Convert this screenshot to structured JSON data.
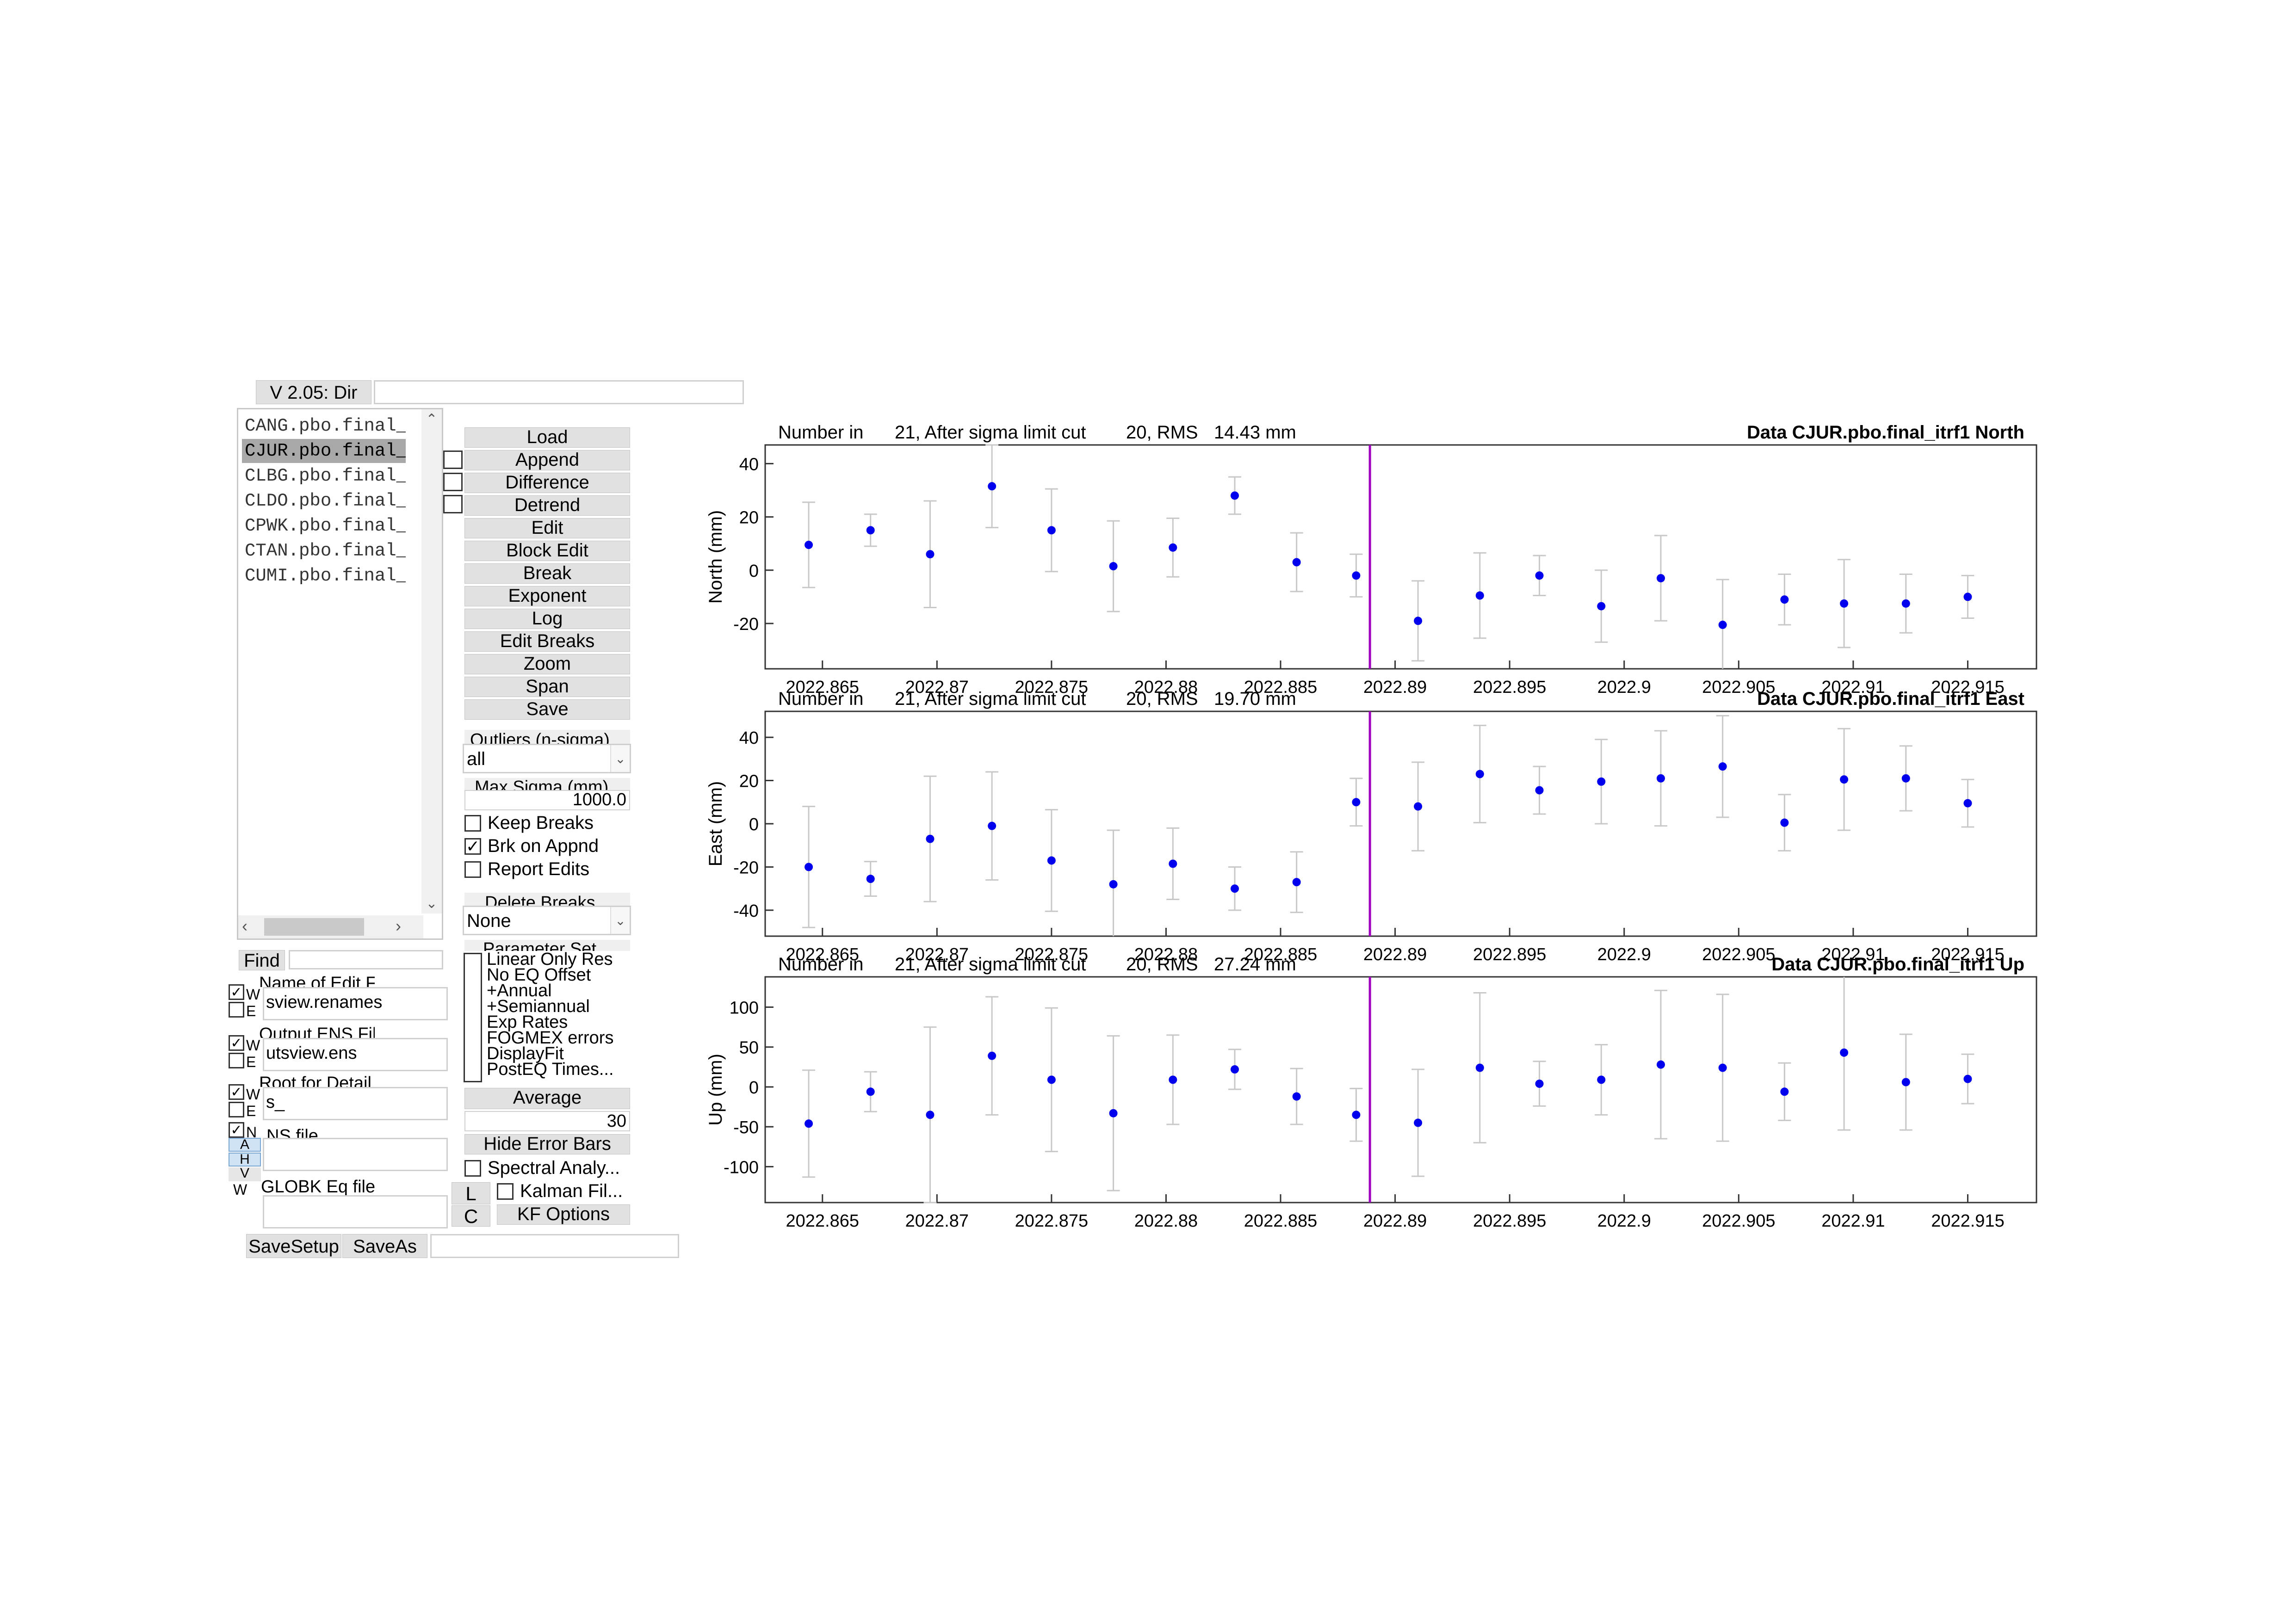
{
  "window": {
    "version_label": "V 2.05: Dir",
    "dir_value": ""
  },
  "file_list": {
    "items": [
      "CANG.pbo.final_",
      "CJUR.pbo.final_",
      "CLBG.pbo.final_",
      "CLDO.pbo.final_",
      "CPWK.pbo.final_",
      "CTAN.pbo.final_",
      "CUMI.pbo.final_"
    ],
    "selected_index": 1
  },
  "actions": {
    "buttons": [
      "Load",
      "Append",
      "Difference",
      "Detrend",
      "Edit",
      "Block Edit",
      "Break",
      "Exponent",
      "Log",
      "Edit Breaks",
      "Zoom",
      "Span",
      "Save"
    ]
  },
  "outliers": {
    "label": "Outliers (n-sigma)",
    "value": "all",
    "max_sigma_label": "Max Sigma (mm)",
    "max_sigma_value": "1000.0"
  },
  "options": {
    "keep_breaks": "Keep Breaks",
    "brk_on_appnd": "Brk on Appnd",
    "report_edits": "Report Edits"
  },
  "delete_breaks": {
    "label": "Delete Breaks",
    "value": "None"
  },
  "parameter_set": {
    "label": "Parameter Set",
    "items": [
      "Linear Only Res",
      "No EQ Offset",
      "+Annual",
      "+Semiannual",
      "Exp Rates",
      "FOGMEX errors",
      "DisplayFit",
      "PostEQ Times..."
    ]
  },
  "average": {
    "button": "Average",
    "value": "30"
  },
  "bottom_buttons": {
    "hide_error_bars": "Hide Error Bars",
    "spectral": "Spectral Analy...",
    "kalman": "Kalman Fil...",
    "kf_options": "KF Options",
    "l": "L",
    "c": "C"
  },
  "find": {
    "label": "Find",
    "value": ""
  },
  "files": {
    "edit_label": "Name of Edit File",
    "edit_value": "sview.renames",
    "ens_label": "Output ENS File",
    "ens_value": "utsview.ens",
    "root_label": "Root for Detail",
    "root_value": "s_",
    "ns_label": "NS file",
    "ns_value": "",
    "globk_label": "GLOBK Eq file",
    "globk_value": "",
    "side_w": "W",
    "side_e": "E",
    "side_n": "N",
    "side_a": "A",
    "side_h": "H",
    "side_v": "V"
  },
  "setup": {
    "save_setup": "SaveSetup",
    "save_as": "SaveAs",
    "value": ""
  },
  "colors": {
    "point": "#0000ee",
    "errorbar": "#c8c8c8",
    "break_line": "#a000c0"
  },
  "chart_data": [
    {
      "type": "scatter",
      "title": "Data CJUR.pbo.final_itrf1 North",
      "stats_left": "Number in",
      "stats_n": "21, After sigma limit cut",
      "stats_cut": "20, RMS",
      "stats_rms": "14.43 mm",
      "ylabel": "North (mm)",
      "xlim": [
        2022.8625,
        2022.918
      ],
      "ylim": [
        -37,
        47
      ],
      "yticks": [
        40,
        20,
        0,
        -20
      ],
      "xticks": [
        "2022.865",
        "2022.87",
        "2022.875",
        "2022.88",
        "2022.885",
        "2022.89",
        "2022.895",
        "2022.9",
        "2022.905",
        "2022.91",
        "2022.915"
      ],
      "break_x": 2022.8889,
      "points": [
        {
          "x": 2022.8644,
          "y": 9.5,
          "err": 16
        },
        {
          "x": 2022.8671,
          "y": 15,
          "err": 6
        },
        {
          "x": 2022.8697,
          "y": 6,
          "err": 20
        },
        {
          "x": 2022.8724,
          "y": 31.5,
          "err": 15.5
        },
        {
          "x": 2022.875,
          "y": 15,
          "err": 15.5
        },
        {
          "x": 2022.8777,
          "y": 1.5,
          "err": 17
        },
        {
          "x": 2022.8803,
          "y": 8.5,
          "err": 11
        },
        {
          "x": 2022.883,
          "y": 28,
          "err": 7
        },
        {
          "x": 2022.8857,
          "y": 3,
          "err": 11
        },
        {
          "x": 2022.8883,
          "y": -2,
          "err": 8
        },
        {
          "x": 2022.891,
          "y": -19,
          "err": 15
        },
        {
          "x": 2022.8937,
          "y": -9.5,
          "err": 16
        },
        {
          "x": 2022.8963,
          "y": -2,
          "err": 7.5
        },
        {
          "x": 2022.899,
          "y": -13.5,
          "err": 13.5
        },
        {
          "x": 2022.9016,
          "y": -3,
          "err": 16
        },
        {
          "x": 2022.9043,
          "y": -20.5,
          "err": 17
        },
        {
          "x": 2022.907,
          "y": -11,
          "err": 9.5
        },
        {
          "x": 2022.9096,
          "y": -12.5,
          "err": 16.5
        },
        {
          "x": 2022.9123,
          "y": -12.5,
          "err": 11
        },
        {
          "x": 2022.915,
          "y": -10,
          "err": 8
        }
      ]
    },
    {
      "type": "scatter",
      "title": "Data CJUR.pbo.final_itrf1 East",
      "stats_left": "Number in",
      "stats_n": "21, After sigma limit cut",
      "stats_cut": "20, RMS",
      "stats_rms": "19.70 mm",
      "ylabel": "East (mm)",
      "xlim": [
        2022.8625,
        2022.918
      ],
      "ylim": [
        -52,
        52
      ],
      "yticks": [
        40,
        20,
        0,
        -20,
        -40
      ],
      "xticks": [
        "2022.865",
        "2022.87",
        "2022.875",
        "2022.88",
        "2022.885",
        "2022.89",
        "2022.895",
        "2022.9",
        "2022.905",
        "2022.91",
        "2022.915"
      ],
      "break_x": 2022.8889,
      "points": [
        {
          "x": 2022.8644,
          "y": -20,
          "err": 28
        },
        {
          "x": 2022.8671,
          "y": -25.5,
          "err": 8
        },
        {
          "x": 2022.8697,
          "y": -7,
          "err": 29
        },
        {
          "x": 2022.8724,
          "y": -1,
          "err": 25
        },
        {
          "x": 2022.875,
          "y": -17,
          "err": 23.5
        },
        {
          "x": 2022.8777,
          "y": -28,
          "err": 25
        },
        {
          "x": 2022.8803,
          "y": -18.5,
          "err": 16.5
        },
        {
          "x": 2022.883,
          "y": -30,
          "err": 10
        },
        {
          "x": 2022.8857,
          "y": -27,
          "err": 14
        },
        {
          "x": 2022.8883,
          "y": 10,
          "err": 11
        },
        {
          "x": 2022.891,
          "y": 8,
          "err": 20.5
        },
        {
          "x": 2022.8937,
          "y": 23,
          "err": 22.5
        },
        {
          "x": 2022.8963,
          "y": 15.5,
          "err": 11
        },
        {
          "x": 2022.899,
          "y": 19.5,
          "err": 19.5
        },
        {
          "x": 2022.9016,
          "y": 21,
          "err": 22
        },
        {
          "x": 2022.9043,
          "y": 26.5,
          "err": 23.5
        },
        {
          "x": 2022.907,
          "y": 0.5,
          "err": 13
        },
        {
          "x": 2022.9096,
          "y": 20.5,
          "err": 23.5
        },
        {
          "x": 2022.9123,
          "y": 21,
          "err": 15
        },
        {
          "x": 2022.915,
          "y": 9.5,
          "err": 11
        }
      ]
    },
    {
      "type": "scatter",
      "title": "Data CJUR.pbo.final_itrf1 Up",
      "stats_left": "Number in",
      "stats_n": "21, After sigma limit cut",
      "stats_cut": "20, RMS",
      "stats_rms": "27.24 mm",
      "ylabel": "Up (mm)",
      "xlim": [
        2022.8625,
        2022.918
      ],
      "ylim": [
        -145,
        138
      ],
      "yticks": [
        100,
        50,
        0,
        -50,
        -100
      ],
      "xticks": [
        "2022.865",
        "2022.87",
        "2022.875",
        "2022.88",
        "2022.885",
        "2022.89",
        "2022.895",
        "2022.9",
        "2022.905",
        "2022.91",
        "2022.915"
      ],
      "break_x": 2022.8889,
      "points": [
        {
          "x": 2022.8644,
          "y": -46,
          "err": 67
        },
        {
          "x": 2022.8671,
          "y": -6,
          "err": 25
        },
        {
          "x": 2022.8697,
          "y": -35,
          "err": 110
        },
        {
          "x": 2022.8724,
          "y": 39,
          "err": 74
        },
        {
          "x": 2022.875,
          "y": 9,
          "err": 90
        },
        {
          "x": 2022.8777,
          "y": -33,
          "err": 97
        },
        {
          "x": 2022.8803,
          "y": 9,
          "err": 56
        },
        {
          "x": 2022.883,
          "y": 22,
          "err": 25
        },
        {
          "x": 2022.8857,
          "y": -12,
          "err": 35
        },
        {
          "x": 2022.8883,
          "y": -35,
          "err": 33
        },
        {
          "x": 2022.891,
          "y": -45,
          "err": 67
        },
        {
          "x": 2022.8937,
          "y": 24,
          "err": 94
        },
        {
          "x": 2022.8963,
          "y": 4,
          "err": 28
        },
        {
          "x": 2022.899,
          "y": 9,
          "err": 44
        },
        {
          "x": 2022.9016,
          "y": 28,
          "err": 93
        },
        {
          "x": 2022.9043,
          "y": 24,
          "err": 92
        },
        {
          "x": 2022.907,
          "y": -6,
          "err": 36
        },
        {
          "x": 2022.9096,
          "y": 43,
          "err": 97
        },
        {
          "x": 2022.9123,
          "y": 6,
          "err": 60
        },
        {
          "x": 2022.915,
          "y": 10,
          "err": 31
        }
      ]
    }
  ]
}
